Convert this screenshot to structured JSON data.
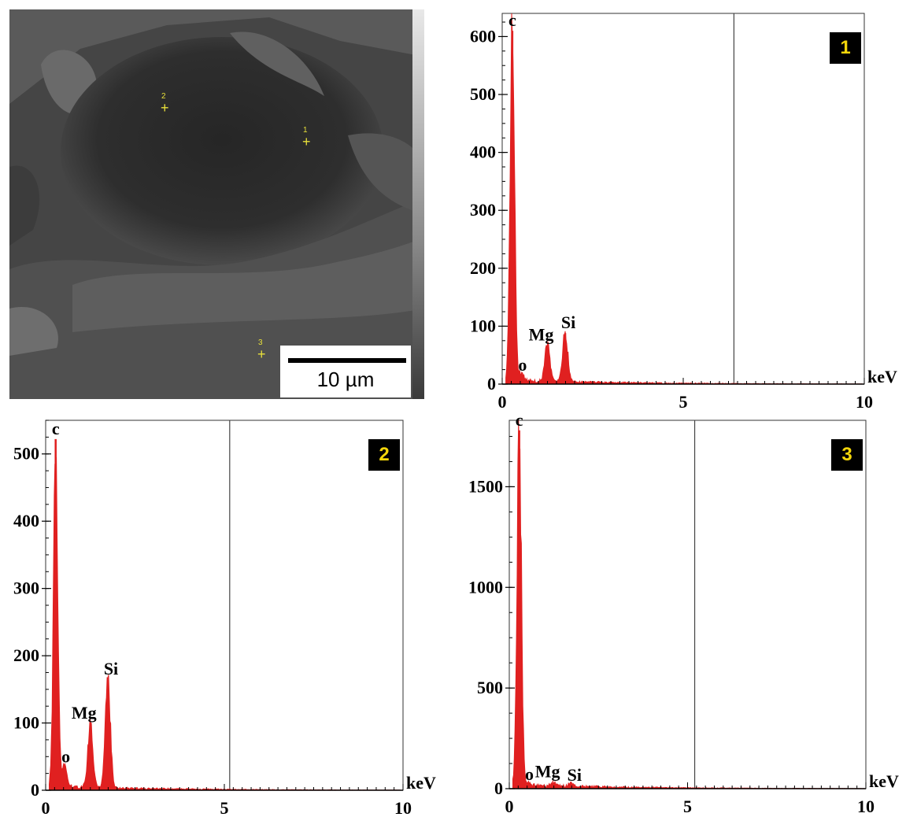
{
  "sem": {
    "scale_label": "10 µm",
    "points": [
      {
        "id": "1"
      },
      {
        "id": "2"
      },
      {
        "id": "3"
      }
    ],
    "marker_color": "#e8e03a"
  },
  "chart_data": [
    {
      "type": "line",
      "badge": "1",
      "xlabel": "keV",
      "xlim": [
        0,
        10
      ],
      "ylim": [
        0,
        640
      ],
      "x_ticks": [
        0,
        5,
        10
      ],
      "y_ticks": [
        0,
        100,
        200,
        300,
        400,
        500,
        600
      ],
      "cursor_x": 6.4,
      "color": "#e02020",
      "peaks": [
        {
          "label": "c",
          "x": 0.28,
          "y": 610
        },
        {
          "label": "o",
          "x": 0.52,
          "y": 12
        },
        {
          "label": "Mg",
          "x": 1.25,
          "y": 62
        },
        {
          "label": "Si",
          "x": 1.74,
          "y": 88
        }
      ]
    },
    {
      "type": "line",
      "badge": "2",
      "xlabel": "keV",
      "xlim": [
        0,
        10
      ],
      "ylim": [
        0,
        550
      ],
      "x_ticks": [
        0,
        5,
        10
      ],
      "y_ticks": [
        0,
        100,
        200,
        300,
        400,
        500
      ],
      "cursor_x": 5.15,
      "color": "#e02020",
      "peaks": [
        {
          "label": "c",
          "x": 0.28,
          "y": 522
        },
        {
          "label": "o",
          "x": 0.52,
          "y": 32
        },
        {
          "label": "Mg",
          "x": 1.25,
          "y": 95
        },
        {
          "label": "Si",
          "x": 1.74,
          "y": 165
        }
      ]
    },
    {
      "type": "line",
      "badge": "3",
      "xlabel": "keV",
      "xlim": [
        0,
        10
      ],
      "ylim": [
        0,
        1830
      ],
      "x_ticks": [
        0,
        5,
        10
      ],
      "y_ticks": [
        0,
        500,
        1000,
        1500
      ],
      "cursor_x": 5.2,
      "color": "#e02020",
      "peaks": [
        {
          "label": "c",
          "x": 0.28,
          "y": 1780
        },
        {
          "label": "o",
          "x": 0.52,
          "y": 12
        },
        {
          "label": "Mg",
          "x": 1.25,
          "y": 18
        },
        {
          "label": "Si",
          "x": 1.74,
          "y": 16
        }
      ]
    }
  ]
}
